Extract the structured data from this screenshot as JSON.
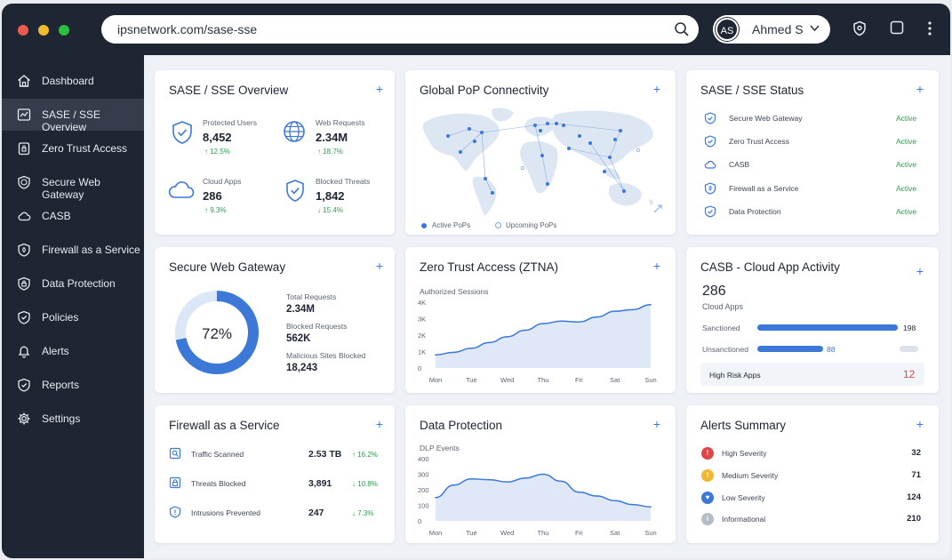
{
  "browser": {
    "url": "ipsnetwork.com/sase-sse",
    "user_initials": "AS",
    "user_name": "Ahmed S"
  },
  "colors": {
    "accent": "#3c78d8",
    "sidebar": "#1e2633",
    "success": "#2e9b4f",
    "danger": "#e04646"
  },
  "sidebar": {
    "items": [
      {
        "label": "Dashboard",
        "icon": "home-icon"
      },
      {
        "label": "SASE / SSE Overview",
        "icon": "overview-icon",
        "active": true
      },
      {
        "label": "Zero Trust Access",
        "icon": "lock-icon"
      },
      {
        "label": "Secure Web Gateway",
        "icon": "globe-shield-icon"
      },
      {
        "label": "CASB",
        "icon": "cloud-icon"
      },
      {
        "label": "Firewall as a Service",
        "icon": "firewall-icon"
      },
      {
        "label": "Data Protection",
        "icon": "padlock-icon"
      },
      {
        "label": "Policies",
        "icon": "policy-icon"
      },
      {
        "label": "Alerts",
        "icon": "bell-icon"
      },
      {
        "label": "Reports",
        "icon": "report-icon"
      },
      {
        "label": "Settings",
        "icon": "gear-icon"
      }
    ]
  },
  "overview": {
    "title": "SASE / SSE Overview",
    "stats": [
      {
        "label": "Protected Users",
        "value": "8,452",
        "delta": "↑ 12.5%"
      },
      {
        "label": "Web Requests",
        "value": "2.34M",
        "delta": "↑ 18.7%"
      },
      {
        "label": "Cloud Apps",
        "value": "286",
        "delta": "↑ 9.3%"
      },
      {
        "label": "Blocked Threats",
        "value": "1,842",
        "delta": "↓ 15.4%"
      }
    ]
  },
  "pop": {
    "title": "Global PoP Connectivity",
    "legend_active": "Active PoPs",
    "legend_upcoming": "Upcoming PoPs"
  },
  "status": {
    "title": "SASE / SSE Status",
    "items": [
      {
        "label": "Secure Web Gateway",
        "state": "Active"
      },
      {
        "label": "Zero Trust Access",
        "state": "Active"
      },
      {
        "label": "CASB",
        "state": "Active"
      },
      {
        "label": "Firewall as a Service",
        "state": "Active"
      },
      {
        "label": "Data Protection",
        "state": "Active"
      }
    ]
  },
  "swg": {
    "title": "Secure Web Gateway",
    "percent": "72%",
    "fraction": 0.72,
    "stats": [
      {
        "label": "Total Requests",
        "value": "2.34M"
      },
      {
        "label": "Blocked Requests",
        "value": "562K"
      },
      {
        "label": "Malicious Sites Blocked",
        "value": "18,243"
      }
    ]
  },
  "ztna": {
    "title": "Zero Trust Access (ZTNA)",
    "subtitle": "Authorized Sessions"
  },
  "casb": {
    "title": "CASB - Cloud App Activity",
    "count": "286",
    "count_label": "Cloud Apps",
    "rows": [
      {
        "label": "Sanctioned",
        "value": "198",
        "num": 198
      },
      {
        "label": "Unsanctioned",
        "value": "88",
        "num": 88
      }
    ],
    "high_risk_label": "High Risk Apps",
    "high_risk_value": "12"
  },
  "fwaas": {
    "title": "Firewall as a Service",
    "rows": [
      {
        "label": "Traffic Scanned",
        "value": "2.53 TB",
        "delta": "↑ 16.2%"
      },
      {
        "label": "Threats Blocked",
        "value": "3,891",
        "delta": "↓ 10.8%"
      },
      {
        "label": "Intrusions Prevented",
        "value": "247",
        "delta": "↓ 7.3%"
      }
    ]
  },
  "dlp": {
    "title": "Data Protection",
    "subtitle": "DLP Events"
  },
  "alerts": {
    "title": "Alerts Summary",
    "rows": [
      {
        "label": "High Severity",
        "value": "32",
        "color": "#e04646"
      },
      {
        "label": "Medium Severity",
        "value": "71",
        "color": "#f2b632"
      },
      {
        "label": "Low Severity",
        "value": "124",
        "color": "#3c78d8"
      },
      {
        "label": "Informational",
        "value": "210",
        "color": "#b5bcc8"
      }
    ]
  },
  "chart_data": [
    {
      "type": "area",
      "title": "Authorized Sessions",
      "categories": [
        "Mon",
        "Tue",
        "Wed",
        "Thu",
        "Fri",
        "Sat",
        "Sun"
      ],
      "x": [
        "Mon",
        "",
        "Tue",
        "",
        "Wed",
        "",
        "Thu",
        "",
        "Fri",
        "",
        "Sat",
        "",
        "Sun"
      ],
      "values": [
        800,
        950,
        1200,
        1550,
        1900,
        2300,
        2700,
        2850,
        2800,
        3100,
        3450,
        3550,
        3850
      ],
      "yticks": [
        "0",
        "1K",
        "2K",
        "3K",
        "4K"
      ],
      "ylim": [
        0,
        4000
      ],
      "grid": false
    },
    {
      "type": "area",
      "title": "DLP Events",
      "categories": [
        "Mon",
        "Tue",
        "Wed",
        "Thu",
        "Fri",
        "Sat",
        "Sun"
      ],
      "x": [
        "Mon",
        "",
        "Tue",
        "",
        "Wed",
        "",
        "Thu",
        "",
        "Fri",
        "",
        "Sat",
        "",
        "Sun"
      ],
      "values": [
        150,
        230,
        270,
        265,
        250,
        275,
        300,
        255,
        185,
        160,
        130,
        105,
        90
      ],
      "yticks": [
        "0",
        "100",
        "200",
        "300",
        "400"
      ],
      "ylim": [
        0,
        400
      ],
      "grid": false
    }
  ]
}
